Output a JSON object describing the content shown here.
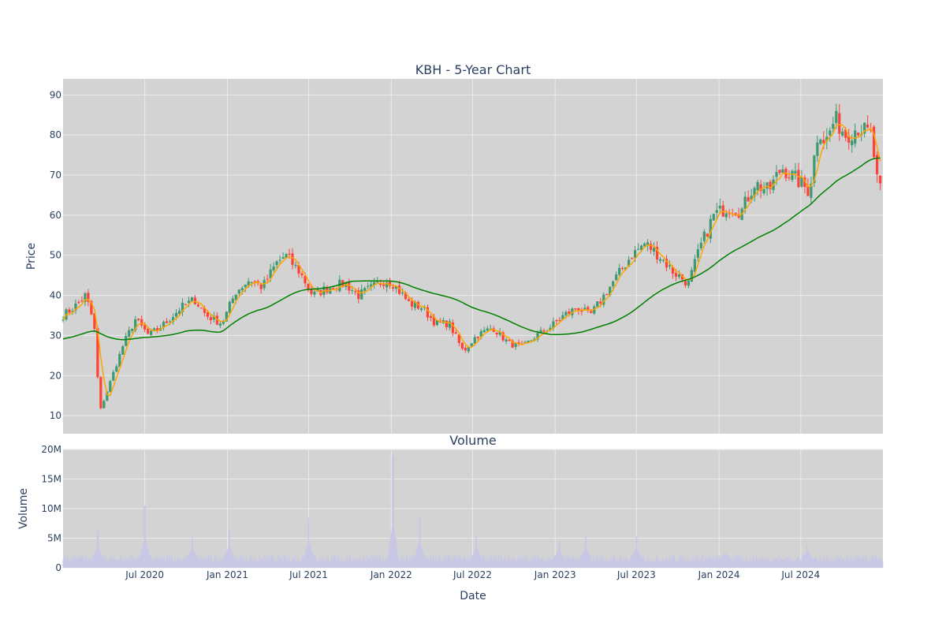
{
  "colors": {
    "plot_bg": "#d3d3d3",
    "grid": "#ebebeb",
    "text": "#2a3f5f",
    "up": "#3d9970",
    "down": "#ff4136",
    "ma_short": "#ffa500",
    "ma_long": "#008000",
    "volume_bar": "#c8c8e6"
  },
  "chart_data": [
    {
      "type": "candlestick",
      "title": "KBH - 5-Year Chart",
      "xlabel": "",
      "ylabel": "Price",
      "xlim": [
        "2020-01-01",
        "2024-12-31"
      ],
      "ylim": [
        5.5,
        94
      ],
      "yticks": [
        10,
        20,
        30,
        40,
        50,
        60,
        70,
        80,
        90
      ],
      "grid": true,
      "key_points": {
        "x": [
          "2020-01-01",
          "2020-01-25",
          "2020-02-20",
          "2020-03-10",
          "2020-03-23",
          "2020-04-20",
          "2020-05-15",
          "2020-06-10",
          "2020-07-10",
          "2020-08-15",
          "2020-09-20",
          "2020-10-20",
          "2020-11-15",
          "2020-12-20",
          "2021-01-20",
          "2021-02-20",
          "2021-03-20",
          "2021-04-20",
          "2021-05-10",
          "2021-06-10",
          "2021-07-10",
          "2021-08-15",
          "2021-09-20",
          "2021-10-20",
          "2021-11-20",
          "2021-12-20",
          "2022-01-05",
          "2022-02-10",
          "2022-03-10",
          "2022-04-10",
          "2022-05-10",
          "2022-06-10",
          "2022-07-10",
          "2022-08-15",
          "2022-09-20",
          "2022-10-20",
          "2022-11-20",
          "2022-12-20",
          "2023-01-20",
          "2023-02-20",
          "2023-03-20",
          "2023-04-20",
          "2023-05-20",
          "2023-06-20",
          "2023-07-20",
          "2023-08-20",
          "2023-09-20",
          "2023-10-25",
          "2023-11-20",
          "2023-12-20",
          "2024-01-20",
          "2024-02-20",
          "2024-03-20",
          "2024-04-20",
          "2024-05-20",
          "2024-06-20",
          "2024-07-20",
          "2024-08-10",
          "2024-08-25",
          "2024-09-15",
          "2024-10-10",
          "2024-11-05",
          "2024-12-05",
          "2024-12-20",
          "2024-12-31"
        ],
        "y": [
          35,
          37,
          40,
          33,
          11,
          20,
          28,
          34,
          30,
          33,
          37,
          39,
          35,
          33,
          41,
          44,
          42,
          48,
          50,
          46,
          40,
          42,
          43,
          40,
          42,
          44,
          43,
          38,
          37,
          33,
          33,
          26,
          30,
          32,
          28,
          27,
          30,
          32,
          35,
          37,
          35,
          40,
          45,
          50,
          53,
          50,
          46,
          43,
          52,
          60,
          62,
          61,
          68,
          66,
          72,
          69,
          66,
          82,
          78,
          84,
          80,
          82,
          80,
          67,
          65
        ]
      },
      "series": [
        {
          "name": "",
          "kind": "ma_short"
        },
        {
          "name": "",
          "kind": "ma_long"
        }
      ]
    },
    {
      "type": "bar",
      "title": "Volume",
      "xlabel": "Date",
      "ylabel": "Volume",
      "xlim": [
        "2020-01-01",
        "2024-12-31"
      ],
      "ylim": [
        0,
        20000000
      ],
      "ytick_labels": [
        "0",
        "5M",
        "10M",
        "15M",
        "20M"
      ],
      "xtick_labels": [
        "Jul 2020",
        "Jan 2021",
        "Jul 2021",
        "Jan 2022",
        "Jul 2022",
        "Jan 2023",
        "Jul 2023",
        "Jan 2024",
        "Jul 2024"
      ],
      "grid": true,
      "baseline": 1600000,
      "spikes": {
        "x": [
          "2020-03-18",
          "2020-07-01",
          "2020-10-15",
          "2021-01-05",
          "2021-07-01",
          "2022-01-05",
          "2022-03-05",
          "2022-07-10",
          "2023-01-10",
          "2023-03-10",
          "2023-07-01",
          "2024-01-15",
          "2024-07-15"
        ],
        "y": [
          6300000,
          10500000,
          5000000,
          6500000,
          8500000,
          19000000,
          8500000,
          5500000,
          4500000,
          5500000,
          5300000,
          2500000,
          3800000
        ]
      }
    }
  ]
}
